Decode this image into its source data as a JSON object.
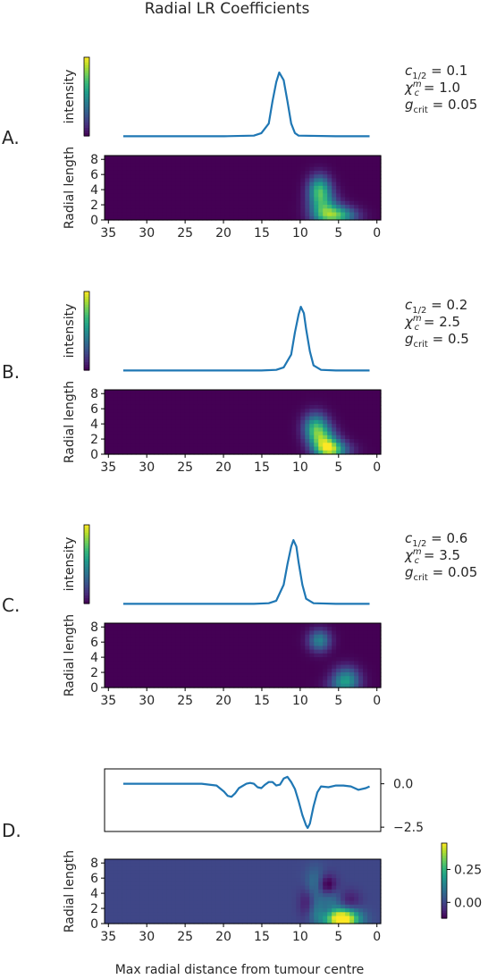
{
  "title": "Radial LR Coefficients",
  "xlabel": "Max radial distance from tumour centre",
  "ylabel": "Radial length",
  "colorbar_label": "intensity",
  "colors": {
    "line": "#1f77b4",
    "text": "#262626",
    "axes": "#000000"
  },
  "chart_data": [
    {
      "panel": "A.",
      "type": "line",
      "x": [
        33.5,
        20,
        16,
        15,
        14,
        13.5,
        13,
        12.6,
        12,
        11.5,
        11,
        10.5,
        10,
        5,
        0.5
      ],
      "y": [
        0,
        0,
        0.01,
        0.05,
        0.2,
        0.55,
        0.85,
        1.0,
        0.88,
        0.55,
        0.2,
        0.05,
        0.01,
        0,
        0
      ],
      "xlim": [
        36,
        -1
      ],
      "ylim": [
        -0.05,
        1.1
      ],
      "params": [
        "c_{1/2} = 0.1",
        "χ_c^m = 1.0",
        "g_crit = 0.05"
      ]
    },
    {
      "panel": "A.",
      "type": "heatmap",
      "xlim": [
        35.5,
        -0.5
      ],
      "ylim": [
        0,
        8.5
      ],
      "xticks": [
        35,
        30,
        25,
        20,
        15,
        10,
        5,
        0
      ],
      "yticks": [
        0,
        2,
        4,
        6,
        8
      ],
      "blobs": [
        {
          "x": 7.5,
          "y": 4.0,
          "sx": 1.0,
          "sy": 1.3,
          "a": 0.6
        },
        {
          "x": 7.0,
          "y": 1.5,
          "sx": 1.3,
          "sy": 1.5,
          "a": 0.5
        },
        {
          "x": 5.5,
          "y": 0.6,
          "sx": 1.5,
          "sy": 0.9,
          "a": 0.5
        },
        {
          "x": 4.0,
          "y": 0.5,
          "sx": 1.5,
          "sy": 0.8,
          "a": 0.2
        }
      ]
    },
    {
      "panel": "B.",
      "type": "line",
      "x": [
        33.5,
        15,
        13,
        12,
        11,
        10.5,
        10,
        9.7,
        9.3,
        9,
        8.5,
        8,
        7,
        5,
        0.5
      ],
      "y": [
        0,
        0,
        0.01,
        0.05,
        0.25,
        0.6,
        0.88,
        1.0,
        0.9,
        0.65,
        0.3,
        0.08,
        0.01,
        0,
        0
      ],
      "xlim": [
        36,
        -1
      ],
      "ylim": [
        -0.05,
        1.1
      ],
      "params": [
        "c_{1/2} = 0.2",
        "χ_c^m = 2.5",
        "g_crit = 0.5"
      ]
    },
    {
      "panel": "B.",
      "type": "heatmap",
      "xlim": [
        35.5,
        -0.5
      ],
      "ylim": [
        0,
        8.5
      ],
      "xticks": [
        35,
        30,
        25,
        20,
        15,
        10,
        5,
        0
      ],
      "yticks": [
        0,
        2,
        4,
        6,
        8
      ],
      "blobs": [
        {
          "x": 8.0,
          "y": 3.5,
          "sx": 1.1,
          "sy": 1.3,
          "a": 0.6
        },
        {
          "x": 7.0,
          "y": 1.6,
          "sx": 1.2,
          "sy": 1.3,
          "a": 0.6
        },
        {
          "x": 6.0,
          "y": 0.6,
          "sx": 1.2,
          "sy": 0.9,
          "a": 0.6
        },
        {
          "x": 4.5,
          "y": 0.5,
          "sx": 1.4,
          "sy": 0.8,
          "a": 0.15
        }
      ]
    },
    {
      "panel": "C.",
      "type": "line",
      "x": [
        33.5,
        16,
        14,
        13,
        12,
        11.5,
        11,
        10.7,
        10.3,
        10,
        9.5,
        9,
        8,
        5,
        0.5
      ],
      "y": [
        0,
        0,
        0.01,
        0.05,
        0.3,
        0.62,
        0.9,
        1.0,
        0.9,
        0.65,
        0.3,
        0.08,
        0.01,
        0,
        0
      ],
      "xlim": [
        36,
        -1
      ],
      "ylim": [
        -0.05,
        1.1
      ],
      "params": [
        "c_{1/2} = 0.6",
        "χ_c^m = 3.5",
        "g_crit = 0.05"
      ]
    },
    {
      "panel": "C.",
      "type": "heatmap",
      "xlim": [
        35.5,
        -0.5
      ],
      "ylim": [
        0,
        8.5
      ],
      "xticks": [
        35,
        30,
        25,
        20,
        15,
        10,
        5,
        0
      ],
      "yticks": [
        0,
        2,
        4,
        6,
        8
      ],
      "blobs": [
        {
          "x": 7.5,
          "y": 6.2,
          "sx": 1.0,
          "sy": 1.0,
          "a": 0.45
        },
        {
          "x": 4.0,
          "y": 1.2,
          "sx": 1.2,
          "sy": 1.1,
          "a": 0.45
        },
        {
          "x": 4.5,
          "y": 0.3,
          "sx": 1.5,
          "sy": 0.7,
          "a": 0.2
        }
      ]
    },
    {
      "panel": "D.",
      "type": "line",
      "x": [
        33.5,
        30,
        26,
        23,
        21,
        20,
        19.5,
        19,
        18.5,
        18,
        17,
        16.5,
        16,
        15.5,
        15,
        14.5,
        14,
        13.5,
        13,
        12.5,
        12,
        11.5,
        11,
        10.5,
        10,
        9.5,
        9,
        8.8,
        8.5,
        8,
        7.5,
        7,
        6,
        5,
        4,
        3,
        2,
        1,
        0.5
      ],
      "y": [
        0,
        0,
        0,
        0,
        -0.1,
        -0.45,
        -0.7,
        -0.75,
        -0.55,
        -0.25,
        0,
        0.05,
        0,
        -0.2,
        -0.25,
        -0.05,
        0.1,
        0.1,
        -0.1,
        -0.05,
        0.3,
        0.4,
        0.1,
        -0.3,
        -1.0,
        -1.8,
        -2.4,
        -2.55,
        -2.3,
        -1.3,
        -0.5,
        -0.15,
        -0.2,
        -0.1,
        -0.1,
        -0.15,
        -0.35,
        -0.25,
        -0.15
      ],
      "xlim": [
        36,
        -1
      ],
      "ylim": [
        -2.75,
        0.6
      ],
      "yticks": [
        0.0,
        -2.5
      ],
      "yticklabels": [
        "0.0",
        "−2.5"
      ]
    },
    {
      "panel": "D.",
      "type": "heatmap",
      "xlim": [
        35.5,
        -0.5
      ],
      "ylim": [
        0,
        8.5
      ],
      "xticks": [
        35,
        30,
        25,
        20,
        15,
        10,
        5,
        0
      ],
      "yticks": [
        0,
        2,
        4,
        6,
        8
      ],
      "clim": [
        -0.12,
        0.45
      ],
      "colorbar_ticks": [
        0.25,
        0.0
      ],
      "colorbar_ticklabels": [
        "0.25",
        "0.00"
      ],
      "blobs": [
        {
          "x": 4.5,
          "y": 0.6,
          "sx": 1.5,
          "sy": 0.9,
          "a": 0.55
        },
        {
          "x": 8.0,
          "y": 1.5,
          "sx": 1.0,
          "sy": 1.2,
          "a": 0.12
        },
        {
          "x": 8.0,
          "y": 5.0,
          "sx": 0.9,
          "sy": 1.6,
          "a": 0.12
        },
        {
          "x": 6.0,
          "y": 3.0,
          "sx": 0.9,
          "sy": 1.5,
          "a": 0.1
        },
        {
          "x": 6.5,
          "y": 5.0,
          "sx": 0.9,
          "sy": 1.0,
          "a": -0.18
        },
        {
          "x": 9.0,
          "y": 2.5,
          "sx": 0.8,
          "sy": 1.5,
          "a": -0.12
        },
        {
          "x": 3.5,
          "y": 3.0,
          "sx": 1.0,
          "sy": 1.0,
          "a": -0.08
        },
        {
          "x": 6.5,
          "y": 1.6,
          "sx": 0.7,
          "sy": 0.8,
          "a": -0.08
        }
      ]
    }
  ]
}
